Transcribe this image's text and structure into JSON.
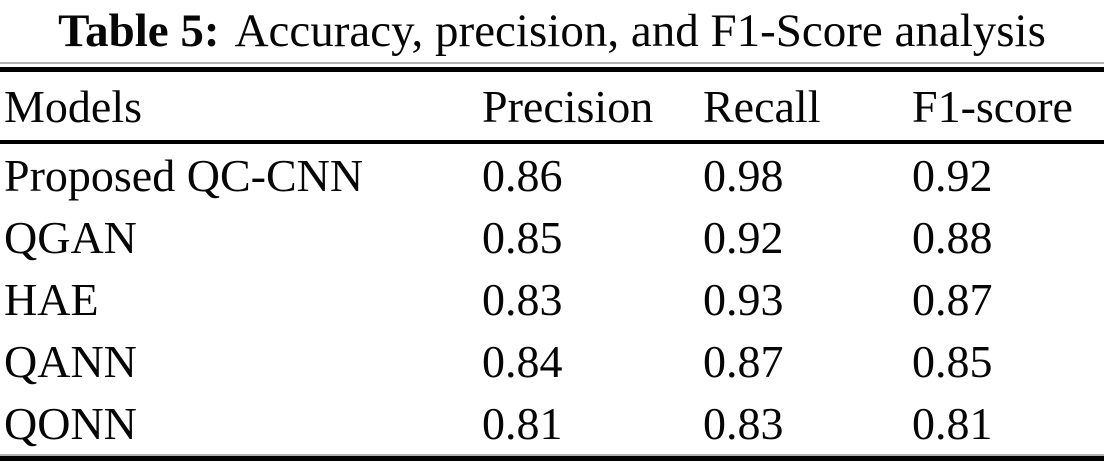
{
  "caption": {
    "label": "Table 5:",
    "text": "Accuracy, precision, and F1-Score analysis"
  },
  "table": {
    "columns": [
      "Models",
      "Precision",
      "Recall",
      "F1-score"
    ],
    "rows": [
      {
        "model": "Proposed QC-CNN",
        "precision": "0.86",
        "recall": "0.98",
        "f1": "0.92"
      },
      {
        "model": "QGAN",
        "precision": "0.85",
        "recall": "0.92",
        "f1": "0.88"
      },
      {
        "model": "HAE",
        "precision": "0.83",
        "recall": "0.93",
        "f1": "0.87"
      },
      {
        "model": "QANN",
        "precision": "0.84",
        "recall": "0.87",
        "f1": "0.85"
      },
      {
        "model": "QONN",
        "precision": "0.81",
        "recall": "0.83",
        "f1": "0.81"
      }
    ]
  },
  "colors": {
    "text": "#060606",
    "background": "#ffffff",
    "rule": "#000000",
    "rule_shadow": "#b3b3b3"
  }
}
